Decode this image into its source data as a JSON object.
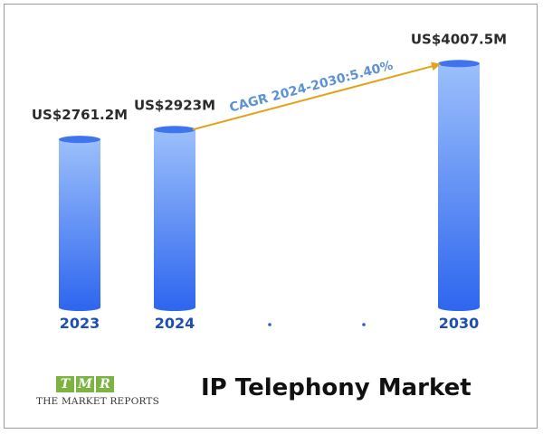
{
  "chart_data": {
    "type": "bar",
    "categories": [
      "2023",
      "2024",
      ".",
      ".",
      "2030"
    ],
    "values": [
      2761.2,
      2923,
      null,
      null,
      4007.5
    ],
    "data_labels": [
      "US$2761.2M",
      "US$2923M",
      "",
      "",
      "US$4007.5M"
    ],
    "annotation": "CAGR 2024-2030:5.40%",
    "title": "IP Telephony Market",
    "xlabel": "",
    "ylabel": "",
    "grid": false,
    "legend": "none",
    "colors": {
      "bar_top": "#9cc0fb",
      "bar_bottom": "#2f67ef",
      "arrow": "#e3a21a",
      "annotation_text": "#5b92d4",
      "tick_text": "#1d4fb0"
    }
  },
  "logo": {
    "letters": [
      "T",
      "M",
      "R"
    ],
    "text": "THE MARKET REPORTS"
  }
}
